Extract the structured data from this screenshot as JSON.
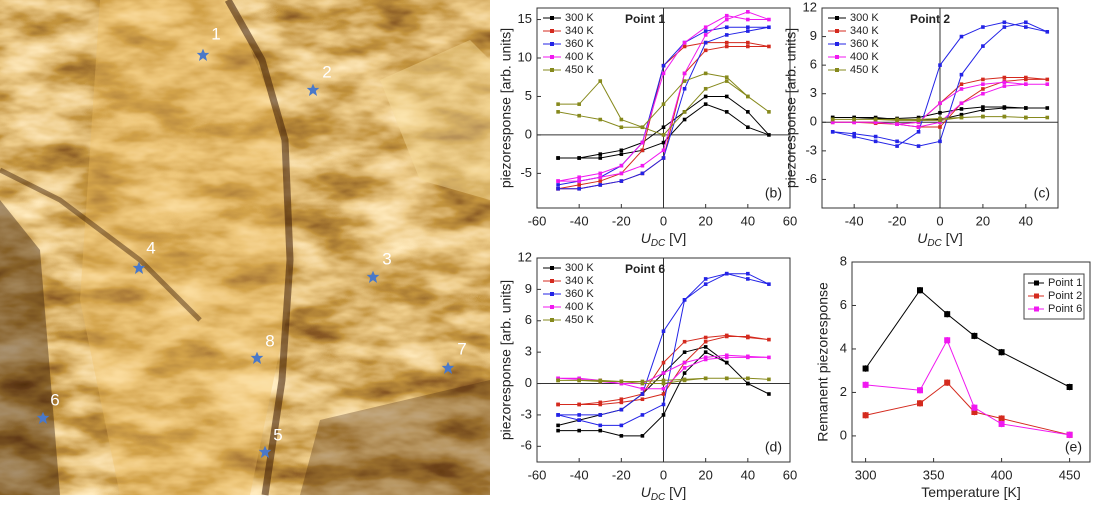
{
  "image": {
    "points": [
      "1",
      "2",
      "3",
      "4",
      "5",
      "6",
      "7",
      "8"
    ]
  },
  "chart_data": [
    {
      "type": "line",
      "annotation": "Point 1",
      "panel": "(b)",
      "ylabel": "piezoresponse [arb. units]",
      "xlabel": {
        "main": "U",
        "sub": "DC",
        "unit": " [V]"
      },
      "zero_lines": true,
      "legend": "upper left",
      "xlim": [
        -60,
        60
      ],
      "xticks": [
        -60,
        -40,
        -20,
        0,
        20,
        40,
        60
      ],
      "ylim": [
        -9.5,
        16.5
      ],
      "yticks": [
        -5,
        0,
        5,
        10,
        15
      ],
      "x": [
        -50,
        -40,
        -30,
        -20,
        -10,
        0,
        10,
        20,
        30,
        40,
        50,
        40,
        30,
        20,
        10,
        0,
        -10,
        -20,
        -30,
        -40,
        -50
      ],
      "series": [
        {
          "name": "300 K",
          "color": "#000000",
          "values": [
            -3,
            -3,
            -3,
            -2.5,
            -2,
            -1,
            2,
            4,
            3,
            1,
            0,
            3,
            5,
            5,
            3,
            1,
            -1,
            -2,
            -2.5,
            -3,
            -3
          ]
        },
        {
          "name": "340 K",
          "color": "#d42a1e",
          "values": [
            -7,
            -7,
            -6.5,
            -6,
            -5,
            -3,
            8,
            11,
            11.5,
            11.5,
            11.5,
            12,
            12,
            12,
            11.5,
            9,
            -2,
            -5,
            -6,
            -6.5,
            -7
          ]
        },
        {
          "name": "360 K",
          "color": "#2323e6",
          "values": [
            -7,
            -7,
            -6.5,
            -6,
            -5,
            -3,
            6,
            12,
            13,
            13.5,
            14,
            14,
            14,
            13.5,
            12,
            9,
            -1,
            -4,
            -5.5,
            -6,
            -6.5
          ]
        },
        {
          "name": "400 K",
          "color": "#f018f0",
          "values": [
            -6,
            -6,
            -5.5,
            -5,
            -4,
            -2,
            8,
            13,
            15,
            16,
            15,
            15,
            15.5,
            14,
            12,
            8,
            -1,
            -4,
            -5,
            -5.5,
            -6
          ]
        },
        {
          "name": "450 K",
          "color": "#86891c",
          "values": [
            4,
            4,
            7,
            2,
            1,
            0,
            3,
            6,
            7,
            5,
            3,
            5,
            7.5,
            8,
            7,
            4,
            1,
            1,
            2,
            2.5,
            3
          ]
        }
      ]
    },
    {
      "type": "line",
      "annotation": "Point 2",
      "panel": "(c)",
      "ylabel": "piezoresponse [arb. units]",
      "xlabel": {
        "main": "U",
        "sub": "DC",
        "unit": " [V]"
      },
      "zero_lines": true,
      "legend": "upper left",
      "xlim": [
        -55,
        55
      ],
      "xticks": [
        -40,
        -20,
        0,
        20,
        40
      ],
      "ylim": [
        -9,
        12
      ],
      "yticks": [
        -6,
        -3,
        0,
        3,
        6,
        9,
        12
      ],
      "x": [
        -50,
        -40,
        -30,
        -20,
        -10,
        0,
        10,
        20,
        30,
        40,
        50,
        40,
        30,
        20,
        10,
        0,
        -10,
        -20,
        -30,
        -40,
        -50
      ],
      "series": [
        {
          "name": "300 K",
          "color": "#000000",
          "values": [
            0.5,
            0.5,
            0.5,
            0.3,
            0.2,
            0.3,
            0.8,
            1.3,
            1.5,
            1.5,
            1.5,
            1.5,
            1.6,
            1.6,
            1.4,
            1,
            0.5,
            0.4,
            0.4,
            0.5,
            0.5
          ]
        },
        {
          "name": "340 K",
          "color": "#d42a1e",
          "values": [
            0,
            0,
            0,
            -0.2,
            -0.5,
            -0.5,
            2,
            3.5,
            4.3,
            4.5,
            4.5,
            4.7,
            4.7,
            4.5,
            4,
            2,
            0,
            -0.2,
            -0.1,
            0,
            0
          ]
        },
        {
          "name": "360 K",
          "color": "#2323e6",
          "values": [
            -1,
            -1.2,
            -1.5,
            -2,
            -2.5,
            -2,
            5,
            8,
            10,
            10.5,
            9.5,
            10,
            10.5,
            10,
            9,
            6,
            -1,
            -2.5,
            -2,
            -1.5,
            -1
          ]
        },
        {
          "name": "400 K",
          "color": "#f018f0",
          "values": [
            0,
            0,
            0,
            -0.2,
            -0.5,
            0,
            2,
            3,
            3.8,
            4,
            4,
            4,
            4.2,
            4,
            3.5,
            2,
            0,
            -0.2,
            0,
            0,
            0
          ]
        },
        {
          "name": "450 K",
          "color": "#86891c",
          "values": [
            0.3,
            0.3,
            0.3,
            0.2,
            0.2,
            0.2,
            0.5,
            0.6,
            0.6,
            0.5,
            0.5,
            0.5,
            0.6,
            0.6,
            0.5,
            0.4,
            0.3,
            0.3,
            0.3,
            0.3,
            0.3
          ]
        }
      ]
    },
    {
      "type": "line",
      "annotation": "Point 6",
      "panel": "(d)",
      "ylabel": "piezoresponse [arb. units]",
      "xlabel": {
        "main": "U",
        "sub": "DC",
        "unit": " [V]"
      },
      "zero_lines": true,
      "legend": "upper left",
      "xlim": [
        -60,
        60
      ],
      "xticks": [
        -60,
        -40,
        -20,
        0,
        20,
        40,
        60
      ],
      "ylim": [
        -7.5,
        12
      ],
      "yticks": [
        -6,
        -3,
        0,
        3,
        6,
        9,
        12
      ],
      "x": [
        -50,
        -40,
        -30,
        -20,
        -10,
        0,
        10,
        20,
        30,
        40,
        50,
        40,
        30,
        20,
        10,
        0,
        -10,
        -20,
        -30,
        -40,
        -50
      ],
      "series": [
        {
          "name": "300 K",
          "color": "#000000",
          "values": [
            -4.5,
            -4.5,
            -4.5,
            -5,
            -5,
            -3,
            1,
            3,
            2,
            0,
            -1,
            0,
            2,
            3.5,
            3,
            1,
            -1,
            -2.5,
            -3,
            -3.5,
            -4
          ]
        },
        {
          "name": "340 K",
          "color": "#d42a1e",
          "values": [
            -2,
            -2,
            -2,
            -1.8,
            -1.5,
            -1,
            2,
            4,
            4.5,
            4.5,
            4.2,
            4.4,
            4.6,
            4.4,
            4,
            2,
            -1,
            -1.5,
            -1.8,
            -2,
            -2
          ]
        },
        {
          "name": "360 K",
          "color": "#2323e6",
          "values": [
            -3,
            -3.5,
            -4,
            -4,
            -3,
            -2,
            8,
            10,
            10.5,
            10,
            9.5,
            10.5,
            10.5,
            9.5,
            8,
            5,
            -1,
            -2.5,
            -3,
            -3,
            -3
          ]
        },
        {
          "name": "400 K",
          "color": "#f018f0",
          "values": [
            0.5,
            0.5,
            0.3,
            0,
            -0.5,
            -0.5,
            1.5,
            2.3,
            2.5,
            2.5,
            2.5,
            2.6,
            2.7,
            2.5,
            2,
            1,
            0,
            0,
            0.2,
            0.4,
            0.5
          ]
        },
        {
          "name": "450 K",
          "color": "#86891c",
          "values": [
            0.3,
            0.3,
            0.3,
            0.2,
            0,
            0,
            0.3,
            0.5,
            0.5,
            0.5,
            0.4,
            0.5,
            0.5,
            0.5,
            0.4,
            0.3,
            0.2,
            0.2,
            0.2,
            0.3,
            0.3
          ]
        }
      ]
    },
    {
      "type": "line",
      "panel": "(e)",
      "ylabel": "Remanent piezoresponse",
      "xlabel": {
        "main": "Temperature [K]"
      },
      "zero_lines": false,
      "legend": "upper right",
      "xlim": [
        290,
        465
      ],
      "xticks": [
        300,
        350,
        400,
        450
      ],
      "ylim": [
        -1.2,
        8
      ],
      "yticks": [
        0,
        2,
        4,
        6,
        8
      ],
      "x": [
        300,
        340,
        360,
        380,
        400,
        450
      ],
      "series": [
        {
          "name": "Point 1",
          "color": "#000000",
          "values": [
            3.1,
            6.7,
            5.6,
            4.6,
            3.85,
            2.25
          ],
          "errors": [
            0.15,
            0.15,
            0.15,
            0.15,
            0.15,
            0.15
          ]
        },
        {
          "name": "Point 2",
          "color": "#d42a1e",
          "values": [
            0.95,
            1.5,
            2.45,
            1.1,
            0.8,
            0.05
          ],
          "errors": [
            0.15,
            0.15,
            0.15,
            0.15,
            0.15,
            0.15
          ]
        },
        {
          "name": "Point 6",
          "color": "#f018f0",
          "values": [
            2.35,
            2.1,
            4.4,
            1.3,
            0.55,
            0.05
          ],
          "errors": [
            0.15,
            0.15,
            0.15,
            0.15,
            0.15,
            0.15
          ]
        }
      ]
    }
  ]
}
